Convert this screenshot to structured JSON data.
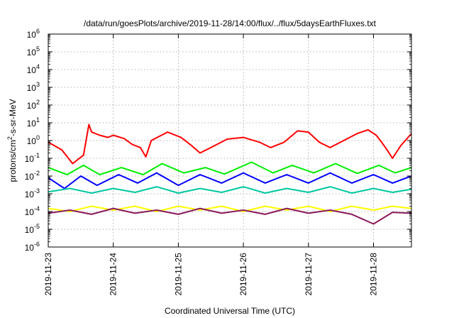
{
  "chart_data": {
    "type": "line",
    "title": "/data/run/goesPlots/archive/2019-11-28/14:00/flux/../flux/5daysEarthFluxes.txt",
    "xlabel": "Coordinated Universal Time (UTC)",
    "ylabel": "protons/cm²-s-sr-MeV",
    "ylabel_parts": [
      "protons/cm",
      "2",
      "-s-sr-MeV"
    ],
    "yscale": "log",
    "ylim_exp": [
      -6,
      6
    ],
    "yticks": [
      {
        "base": "10",
        "exp": "-6"
      },
      {
        "base": "10",
        "exp": "-5"
      },
      {
        "base": "10",
        "exp": "-4"
      },
      {
        "base": "10",
        "exp": "-3"
      },
      {
        "base": "10",
        "exp": "-2"
      },
      {
        "base": "10",
        "exp": "-1"
      },
      {
        "base": "10",
        "exp": "0"
      },
      {
        "base": "10",
        "exp": "1"
      },
      {
        "base": "10",
        "exp": "2"
      },
      {
        "base": "10",
        "exp": "3"
      },
      {
        "base": "10",
        "exp": "4"
      },
      {
        "base": "10",
        "exp": "5"
      },
      {
        "base": "10",
        "exp": "6"
      }
    ],
    "xlim": [
      "2019-11-23T00:00",
      "2019-11-28T14:00"
    ],
    "xticks": [
      "2019-11-23",
      "2019-11-24",
      "2019-11-25",
      "2019-11-26",
      "2019-11-27",
      "2019-11-28"
    ],
    "grid": true,
    "legend": "none",
    "series": [
      {
        "color": "#ff0000",
        "x": [
          "2019-11-23T00:00",
          "2019-11-23T05:00",
          "2019-11-23T09:00",
          "2019-11-23T13:00",
          "2019-11-23T15:00",
          "2019-11-23T16:00",
          "2019-11-23T19:00",
          "2019-11-23T22:00",
          "2019-11-24T00:00",
          "2019-11-24T04:00",
          "2019-11-24T07:00",
          "2019-11-24T10:00",
          "2019-11-24T12:00",
          "2019-11-24T14:00",
          "2019-11-24T20:00",
          "2019-11-25T01:00",
          "2019-11-25T05:00",
          "2019-11-25T08:00",
          "2019-11-25T12:00",
          "2019-11-25T18:00",
          "2019-11-26T00:00",
          "2019-11-26T06:00",
          "2019-11-26T10:00",
          "2019-11-26T15:00",
          "2019-11-26T20:00",
          "2019-11-27T00:00",
          "2019-11-27T04:00",
          "2019-11-27T08:00",
          "2019-11-27T13:00",
          "2019-11-27T18:00",
          "2019-11-27T22:00",
          "2019-11-28T01:00",
          "2019-11-28T03:00",
          "2019-11-28T05:00",
          "2019-11-28T07:00",
          "2019-11-28T10:00",
          "2019-11-28T14:00"
        ],
        "y": [
          0.8,
          0.3,
          0.05,
          0.15,
          8,
          3,
          2,
          1.5,
          2,
          1.3,
          0.6,
          0.4,
          0.12,
          1,
          3,
          1.5,
          0.5,
          0.2,
          0.4,
          1.2,
          1.5,
          0.8,
          0.4,
          0.8,
          3.5,
          3.0,
          0.8,
          0.4,
          1.0,
          2.5,
          4.0,
          2.0,
          0.8,
          0.3,
          0.1,
          0.5,
          2.5
        ]
      },
      {
        "color": "#00ee00",
        "x": [
          "2019-11-23T00:00",
          "2019-11-23T07:00",
          "2019-11-23T13:00",
          "2019-11-23T19:00",
          "2019-11-24T03:00",
          "2019-11-24T11:00",
          "2019-11-24T18:00",
          "2019-11-25T02:00",
          "2019-11-25T10:00",
          "2019-11-25T17:00",
          "2019-11-26T03:00",
          "2019-11-26T11:00",
          "2019-11-26T18:00",
          "2019-11-27T02:00",
          "2019-11-27T10:00",
          "2019-11-27T18:00",
          "2019-11-28T02:00",
          "2019-11-28T08:00",
          "2019-11-28T14:00"
        ],
        "y": [
          0.03,
          0.012,
          0.04,
          0.012,
          0.03,
          0.012,
          0.05,
          0.015,
          0.03,
          0.013,
          0.06,
          0.015,
          0.04,
          0.015,
          0.05,
          0.014,
          0.04,
          0.015,
          0.03
        ]
      },
      {
        "color": "#0000ff",
        "x": [
          "2019-11-23T00:00",
          "2019-11-23T06:00",
          "2019-11-23T12:00",
          "2019-11-23T18:00",
          "2019-11-24T02:00",
          "2019-11-24T09:00",
          "2019-11-24T16:00",
          "2019-11-25T00:00",
          "2019-11-25T08:00",
          "2019-11-25T16:00",
          "2019-11-26T00:00",
          "2019-11-26T08:00",
          "2019-11-26T16:00",
          "2019-11-27T00:00",
          "2019-11-27T08:00",
          "2019-11-27T16:00",
          "2019-11-28T00:00",
          "2019-11-28T07:00",
          "2019-11-28T14:00"
        ],
        "y": [
          0.008,
          0.002,
          0.01,
          0.003,
          0.012,
          0.004,
          0.015,
          0.003,
          0.012,
          0.004,
          0.015,
          0.004,
          0.012,
          0.004,
          0.015,
          0.004,
          0.012,
          0.004,
          0.01
        ]
      },
      {
        "color": "#00c8a0",
        "x": [
          "2019-11-23T00:00",
          "2019-11-23T08:00",
          "2019-11-23T16:00",
          "2019-11-24T00:00",
          "2019-11-24T08:00",
          "2019-11-24T16:00",
          "2019-11-25T00:00",
          "2019-11-25T08:00",
          "2019-11-25T16:00",
          "2019-11-26T00:00",
          "2019-11-26T08:00",
          "2019-11-26T16:00",
          "2019-11-27T00:00",
          "2019-11-27T08:00",
          "2019-11-27T16:00",
          "2019-11-28T00:00",
          "2019-11-28T07:00",
          "2019-11-28T14:00"
        ],
        "y": [
          0.0013,
          0.002,
          0.0011,
          0.002,
          0.0012,
          0.0025,
          0.0011,
          0.002,
          0.0012,
          0.0025,
          0.0011,
          0.002,
          0.0012,
          0.0025,
          0.0011,
          0.002,
          0.0012,
          0.0018
        ]
      },
      {
        "color": "#ffff00",
        "x": [
          "2019-11-23T00:00",
          "2019-11-23T08:00",
          "2019-11-23T16:00",
          "2019-11-24T00:00",
          "2019-11-24T08:00",
          "2019-11-24T16:00",
          "2019-11-25T00:00",
          "2019-11-25T08:00",
          "2019-11-25T16:00",
          "2019-11-26T00:00",
          "2019-11-26T08:00",
          "2019-11-26T16:00",
          "2019-11-27T00:00",
          "2019-11-27T08:00",
          "2019-11-27T16:00",
          "2019-11-28T00:00",
          "2019-11-28T07:00",
          "2019-11-28T14:00"
        ],
        "y": [
          0.00015,
          0.0001,
          0.0002,
          0.00012,
          0.0002,
          0.0001,
          0.0002,
          0.00012,
          0.0002,
          0.0001,
          0.0002,
          0.00012,
          0.0002,
          0.0001,
          0.0002,
          0.00012,
          0.0002,
          0.00015
        ]
      },
      {
        "color": "#8b1a5a",
        "x": [
          "2019-11-23T00:00",
          "2019-11-23T08:00",
          "2019-11-23T16:00",
          "2019-11-24T00:00",
          "2019-11-24T08:00",
          "2019-11-24T16:00",
          "2019-11-25T00:00",
          "2019-11-25T08:00",
          "2019-11-25T16:00",
          "2019-11-26T00:00",
          "2019-11-26T08:00",
          "2019-11-26T16:00",
          "2019-11-27T00:00",
          "2019-11-27T08:00",
          "2019-11-27T16:00",
          "2019-11-28T00:00",
          "2019-11-28T07:00",
          "2019-11-28T14:00"
        ],
        "y": [
          8e-05,
          0.00012,
          7e-05,
          0.00015,
          8e-05,
          0.00012,
          7e-05,
          0.00015,
          8e-05,
          0.00012,
          7e-05,
          0.00015,
          8e-05,
          0.00012,
          7e-05,
          2e-05,
          9e-05,
          8e-05
        ]
      }
    ]
  }
}
